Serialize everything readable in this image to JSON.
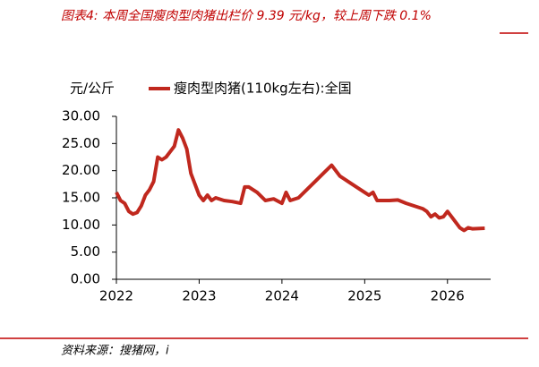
{
  "chart_data": {
    "type": "line",
    "title": "图表4:  本周全国瘦肉型肉猪出栏价 9.39 元/kg，较上周下跌 0.1%",
    "y_label": "元/公斤",
    "source": "资料来源：搜猪网，i",
    "x": [
      2022.0,
      2022.05,
      2022.1,
      2022.15,
      2022.2,
      2022.25,
      2022.3,
      2022.35,
      2022.4,
      2022.45,
      2022.5,
      2022.55,
      2022.6,
      2022.65,
      2022.7,
      2022.75,
      2022.8,
      2022.85,
      2022.9,
      2022.95,
      2023.0,
      2023.05,
      2023.1,
      2023.15,
      2023.2,
      2023.3,
      2023.4,
      2023.5,
      2023.55,
      2023.6,
      2023.7,
      2023.8,
      2023.9,
      2024.0,
      2024.05,
      2024.1,
      2024.2,
      2024.3,
      2024.4,
      2024.5,
      2024.6,
      2024.7,
      2024.8,
      2024.9,
      2025.0,
      2025.05,
      2025.1,
      2025.15,
      2025.3,
      2025.4,
      2025.5,
      2025.6,
      2025.7,
      2025.75,
      2025.8,
      2025.85,
      2025.9,
      2025.95,
      2026.0,
      2026.05,
      2026.1,
      2026.15,
      2026.2,
      2026.25,
      2026.3,
      2026.45
    ],
    "series": [
      {
        "name": "瘦肉型肉猪(110kg左右):全国",
        "color": "#c0281e",
        "values": [
          16.0,
          14.5,
          14.0,
          12.5,
          12.0,
          12.3,
          13.5,
          15.5,
          16.5,
          18.0,
          22.5,
          22.0,
          22.5,
          23.5,
          24.5,
          27.5,
          26.0,
          24.0,
          19.5,
          17.5,
          15.5,
          14.5,
          15.5,
          14.5,
          15.0,
          14.5,
          14.3,
          14.0,
          17.0,
          17.0,
          16.0,
          14.5,
          14.8,
          14.0,
          16.0,
          14.5,
          15.0,
          16.5,
          18.0,
          19.5,
          21.0,
          19.0,
          18.0,
          17.0,
          16.0,
          15.5,
          16.0,
          14.5,
          14.5,
          14.6,
          14.0,
          13.5,
          13.0,
          12.5,
          11.5,
          12.0,
          11.3,
          11.5,
          12.5,
          11.5,
          10.5,
          9.5,
          9.0,
          9.5,
          9.3,
          9.39
        ]
      }
    ],
    "xlim": [
      2022,
      2026.5
    ],
    "xticks": [
      2022,
      2023,
      2024,
      2025,
      2026
    ],
    "ylim": [
      0,
      30
    ],
    "yticks": [
      {
        "value": 0,
        "label": "0.00"
      },
      {
        "value": 5,
        "label": "5.00"
      },
      {
        "value": 10,
        "label": "10.00"
      },
      {
        "value": 15,
        "label": "15.00"
      },
      {
        "value": 20,
        "label": "20.00"
      },
      {
        "value": 25,
        "label": "25.00"
      },
      {
        "value": 30,
        "label": "30.00"
      }
    ],
    "grid": false
  }
}
